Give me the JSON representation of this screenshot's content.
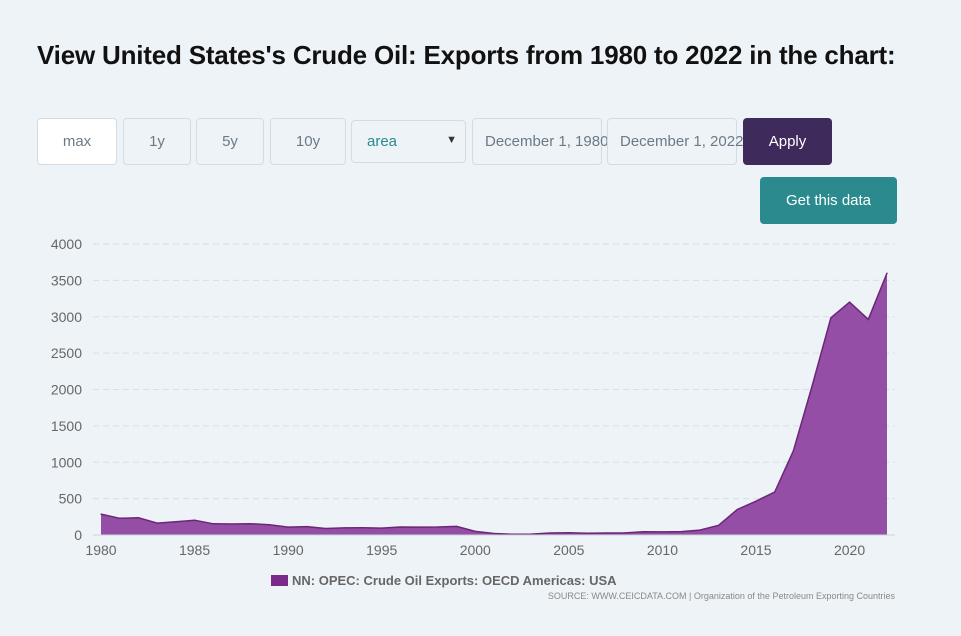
{
  "title": "View United States's Crude Oil: Exports from 1980 to 2022 in the chart:",
  "controls": {
    "ranges": [
      "max",
      "1y",
      "5y",
      "10y"
    ],
    "chart_type": "area",
    "start_date": "December 1, 1980",
    "end_date": "December 1, 2022",
    "apply_label": "Apply",
    "get_data_label": "Get this data"
  },
  "colors": {
    "series_fill": "#8e44a0",
    "series_line": "#6b2677",
    "legend_swatch": "#7b2a8c",
    "apply_bg": "#3f2a5c",
    "get_data_bg": "#2a8a8e"
  },
  "chart_data": {
    "type": "area",
    "x": [
      1980,
      1981,
      1982,
      1983,
      1984,
      1985,
      1986,
      1987,
      1988,
      1989,
      1990,
      1991,
      1992,
      1993,
      1994,
      1995,
      1996,
      1997,
      1998,
      1999,
      2000,
      2001,
      2002,
      2003,
      2004,
      2005,
      2006,
      2007,
      2008,
      2009,
      2010,
      2011,
      2012,
      2013,
      2014,
      2015,
      2016,
      2017,
      2018,
      2019,
      2020,
      2021,
      2022
    ],
    "series": [
      {
        "name": "NN: OPEC: Crude Oil Exports: OECD Americas: USA",
        "values": [
          287,
          230,
          236,
          163,
          181,
          204,
          154,
          151,
          155,
          140,
          109,
          116,
          89,
          98,
          99,
          95,
          110,
          108,
          110,
          118,
          50,
          20,
          9,
          12,
          27,
          32,
          25,
          27,
          29,
          44,
          42,
          47,
          67,
          134,
          351,
          465,
          591,
          1158,
          2048,
          2985,
          3201,
          2964,
          3600
        ]
      }
    ],
    "xticks": [
      "1980",
      "1985",
      "1990",
      "1995",
      "2000",
      "2005",
      "2010",
      "2015",
      "2020"
    ],
    "yticks": [
      "0",
      "500",
      "1000",
      "1500",
      "2000",
      "2500",
      "3000",
      "3500",
      "4000"
    ],
    "ylim": [
      0,
      4000
    ],
    "xlim": [
      1980,
      2022
    ],
    "grid": true,
    "legend_position": "bottom-center",
    "source": "SOURCE: WWW.CEICDATA.COM | Organization of the Petroleum Exporting Countries"
  }
}
